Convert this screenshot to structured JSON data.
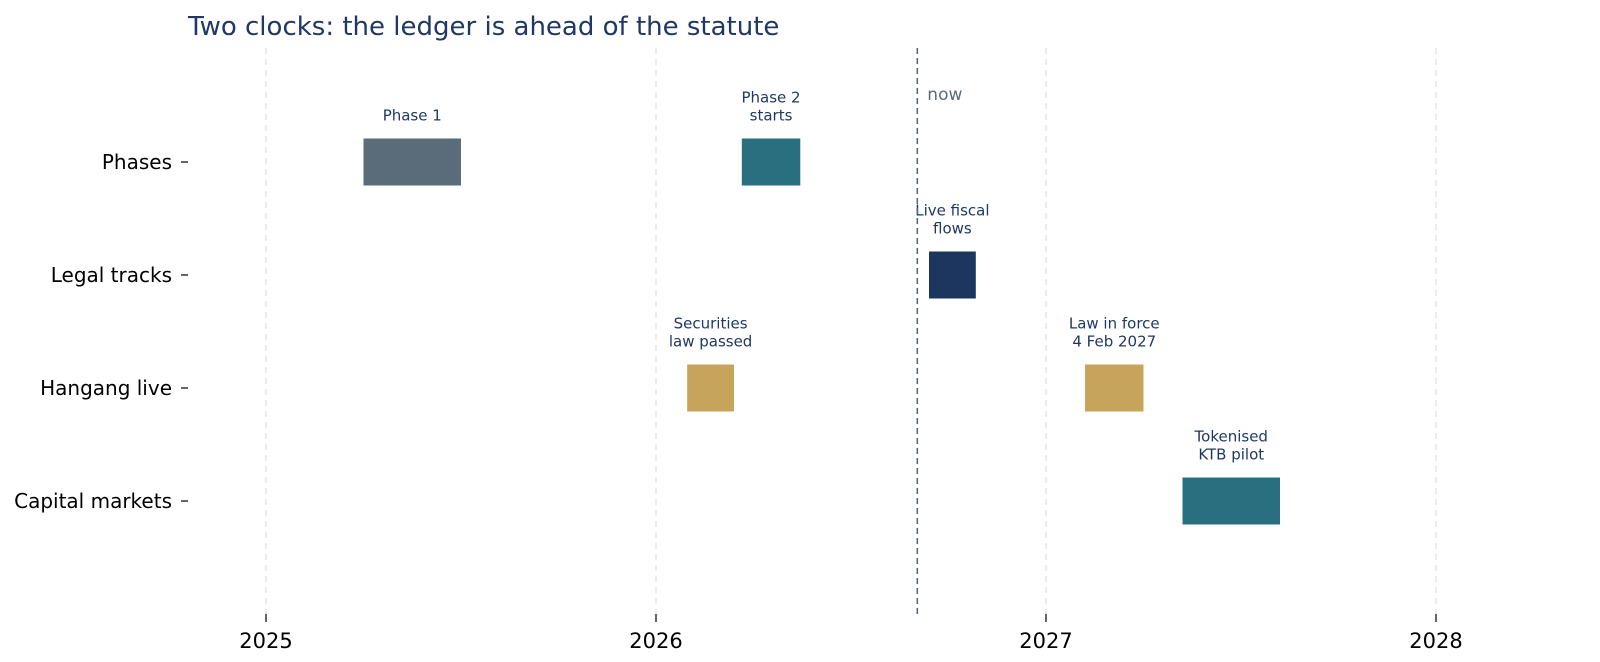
{
  "chart_data": {
    "type": "timeline",
    "title": "Two clocks: the ledger is ahead of the statute",
    "rows": [
      "Phases",
      "Legal tracks",
      "Hangang live",
      "Capital markets"
    ],
    "x_ticks": [
      "2025",
      "2026",
      "2027",
      "2028"
    ],
    "x_tick_values": [
      2025.0,
      2026.0,
      2027.0,
      2028.0
    ],
    "xlim": [
      2024.83,
      2028.4
    ],
    "grid": "vertical dashed at year ticks",
    "now": {
      "label": "now",
      "value": 2026.67
    },
    "tasks": [
      {
        "row": "Phases",
        "label": [
          "Phase 1"
        ],
        "start": 2025.25,
        "end": 2025.5,
        "color": "#5a6b7a"
      },
      {
        "row": "Phases",
        "label": [
          "Phase 2",
          "starts"
        ],
        "start": 2026.22,
        "end": 2026.37,
        "color": "#2a6f80"
      },
      {
        "row": "Legal tracks",
        "label": [
          "Live fiscal",
          "flows"
        ],
        "start": 2026.7,
        "end": 2026.82,
        "color": "#1c3660"
      },
      {
        "row": "Hangang live",
        "label": [
          "Securities",
          "law passed"
        ],
        "start": 2026.08,
        "end": 2026.2,
        "color": "#c6a45b"
      },
      {
        "row": "Hangang live",
        "label": [
          "Law in force",
          "4 Feb 2027"
        ],
        "start": 2027.1,
        "end": 2027.25,
        "color": "#c6a45b"
      },
      {
        "row": "Capital markets",
        "label": [
          "Tokenised",
          "KTB pilot"
        ],
        "start": 2027.35,
        "end": 2027.6,
        "color": "#2a6f80"
      }
    ]
  }
}
